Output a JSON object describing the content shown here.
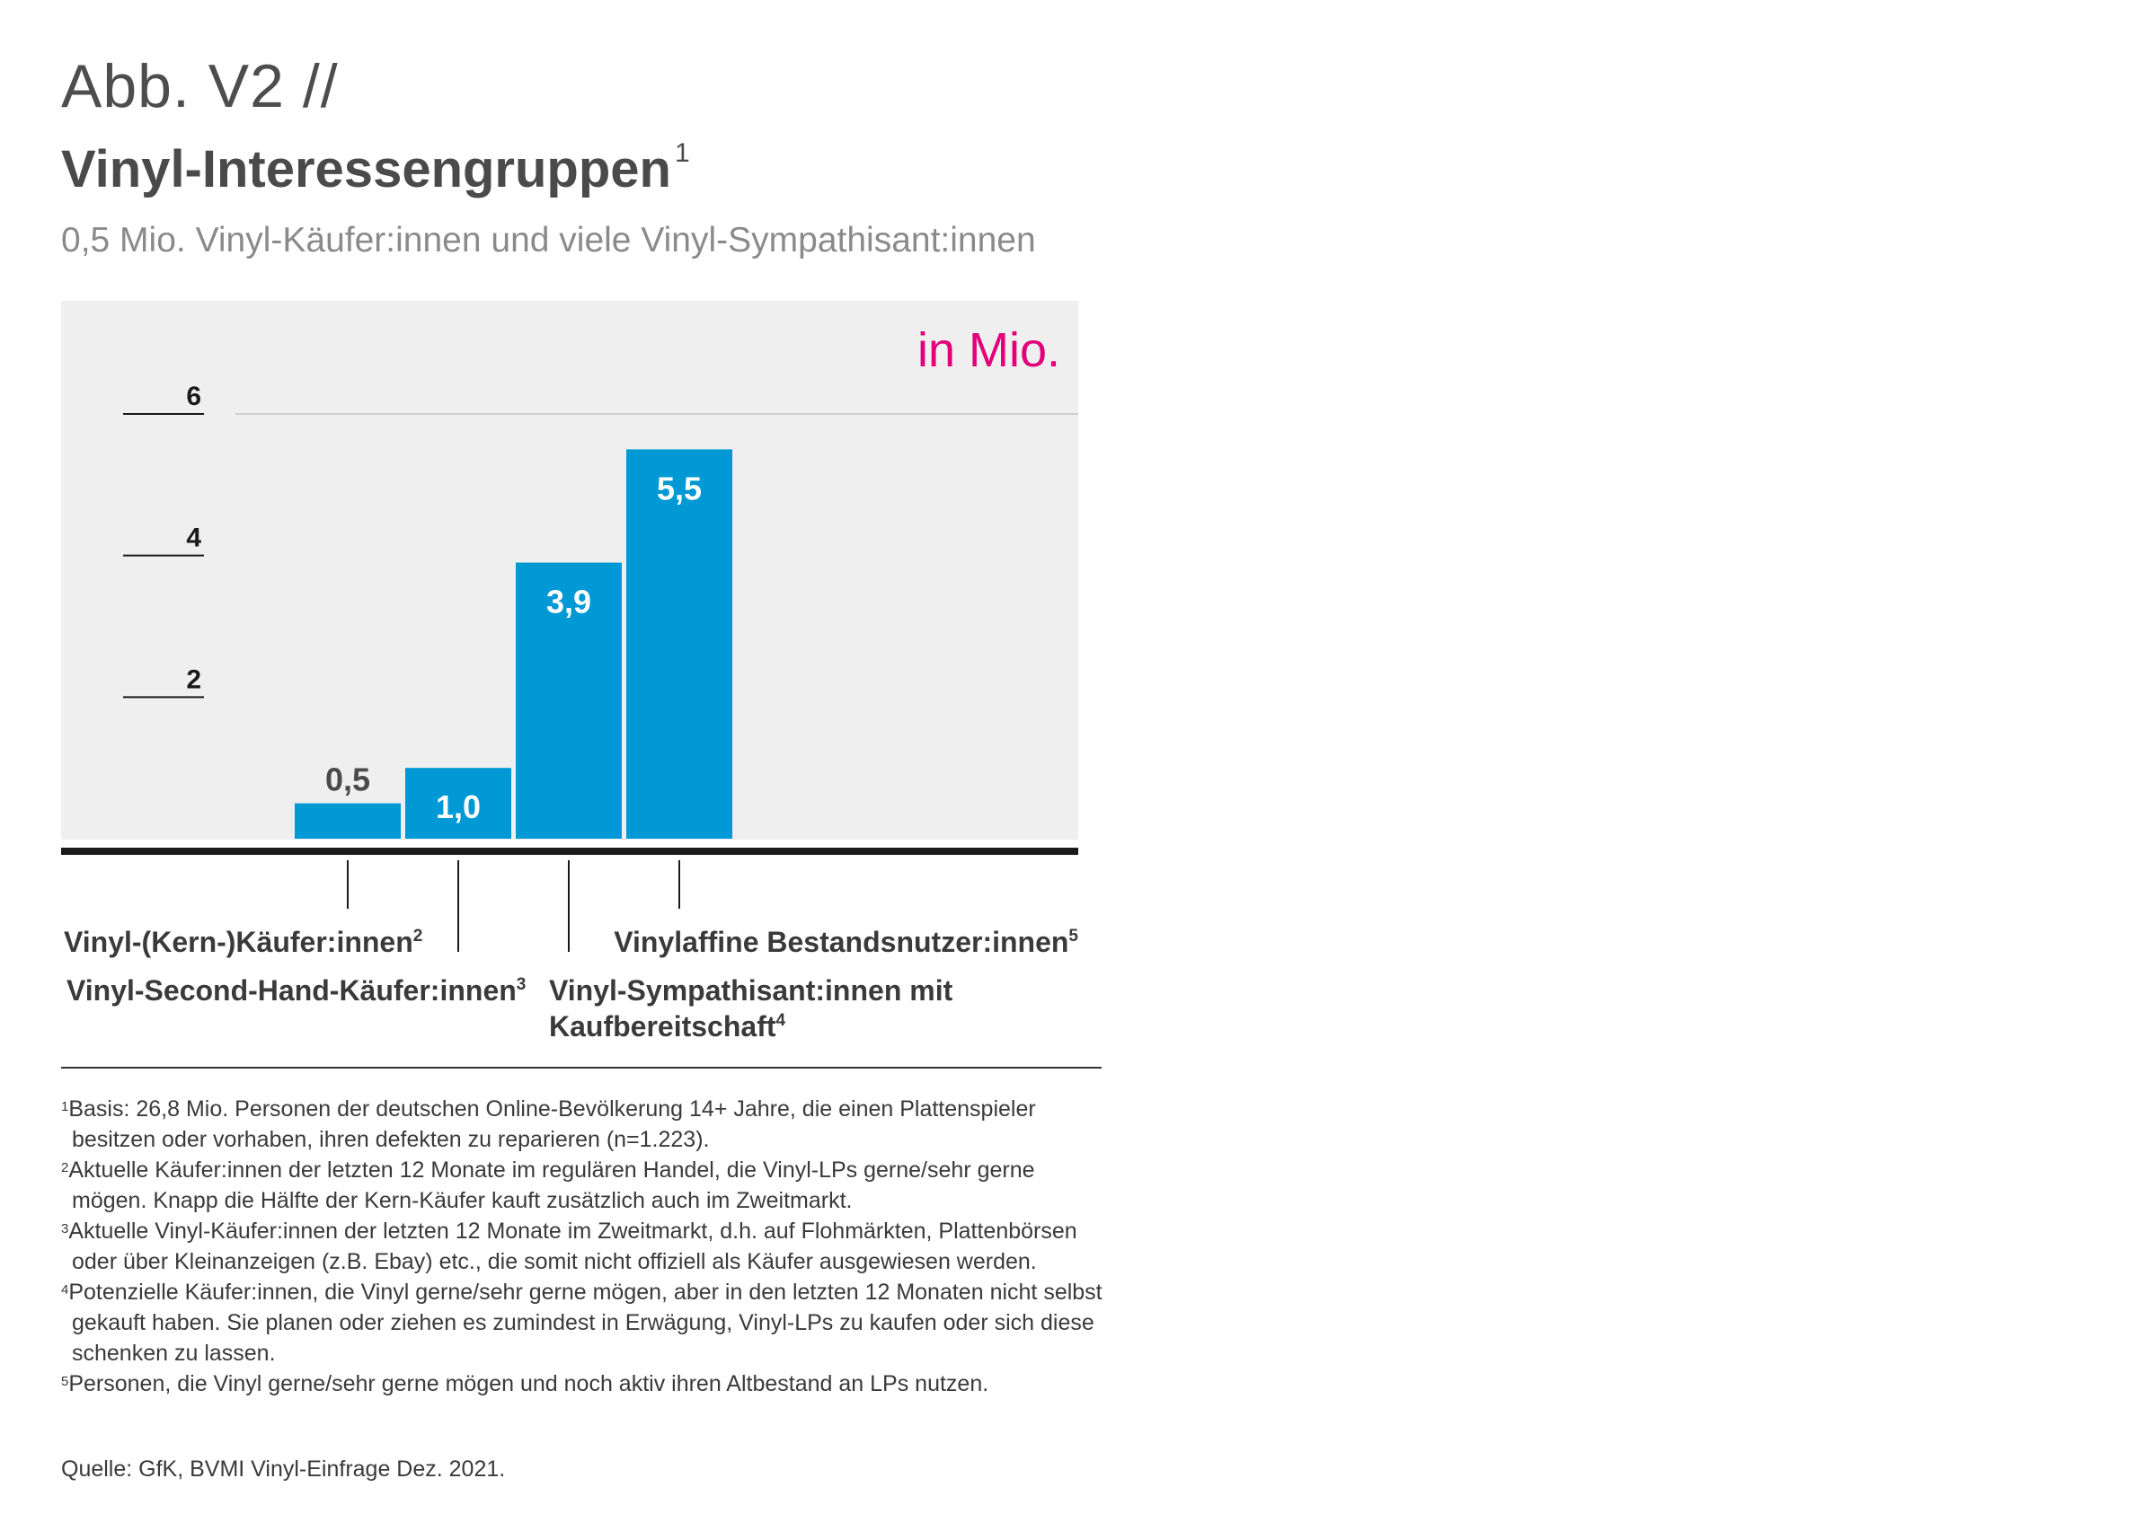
{
  "header": {
    "abb": "Abb. V2 //",
    "title": "Vinyl-Interessengruppen",
    "title_sup": "1",
    "subtitle": "0,5 Mio. Vinyl-Käufer:innen und viele Vinyl-Sympathisant:innen"
  },
  "chart_data": {
    "type": "bar",
    "unit_label": "in Mio.",
    "ylim": [
      0,
      6
    ],
    "yticks": [
      {
        "value": 2,
        "label": "2"
      },
      {
        "value": 4,
        "label": "4"
      },
      {
        "value": 6,
        "label": "6"
      }
    ],
    "categories": [
      "Vinyl-(Kern-)Käufer:innen",
      "Vinyl-Second-Hand-Käufer:innen",
      "Vinyl-Sympathisant:innen mit Kaufbereitschaft",
      "Vinylaffine Bestandsnutzer:innen"
    ],
    "category_sups": [
      "2",
      "3",
      "4",
      "5"
    ],
    "values": [
      0.5,
      1.0,
      3.9,
      5.5
    ],
    "value_labels": [
      "0,5",
      "1,0",
      "3,9",
      "5,5"
    ],
    "grid": false,
    "colors": {
      "bar": "#0099d6",
      "background": "#efefef",
      "unit": "#e2007a",
      "axis": "#1a1a1a"
    }
  },
  "footnotes": [
    {
      "num": "1",
      "text": "Basis: 26,8 Mio. Personen der deutschen Online-Bevölkerung 14+ Jahre, die einen Plattenspieler besitzen oder vorhaben, ihren defekten zu reparieren (n=1.223)."
    },
    {
      "num": "2",
      "text": "Aktuelle Käufer:innen der letzten 12 Monate im regulären Handel, die Vinyl-LPs gerne/sehr gerne mögen. Knapp die Hälfte der Kern-Käufer kauft zusätzlich auch im Zweitmarkt."
    },
    {
      "num": "3",
      "text": "Aktuelle Vinyl-Käufer:innen der letzten 12 Monate im Zweitmarkt, d.h. auf Flohmärkten, Plattenbörsen oder über Kleinanzeigen (z.B. Ebay) etc., die somit nicht offiziell als Käufer ausgewiesen werden."
    },
    {
      "num": "4",
      "text": "Potenzielle Käufer:innen, die Vinyl gerne/sehr gerne mögen, aber in den letzten 12 Monaten nicht selbst gekauft haben. Sie planen oder ziehen es zumindest in Erwägung, Vinyl-LPs zu kaufen oder sich diese schenken zu lassen."
    },
    {
      "num": "5",
      "text": "Personen, die Vinyl gerne/sehr gerne mögen und noch aktiv ihren Altbestand an LPs nutzen."
    }
  ],
  "source": "Quelle: GfK, BVMI Vinyl-Einfrage Dez. 2021."
}
